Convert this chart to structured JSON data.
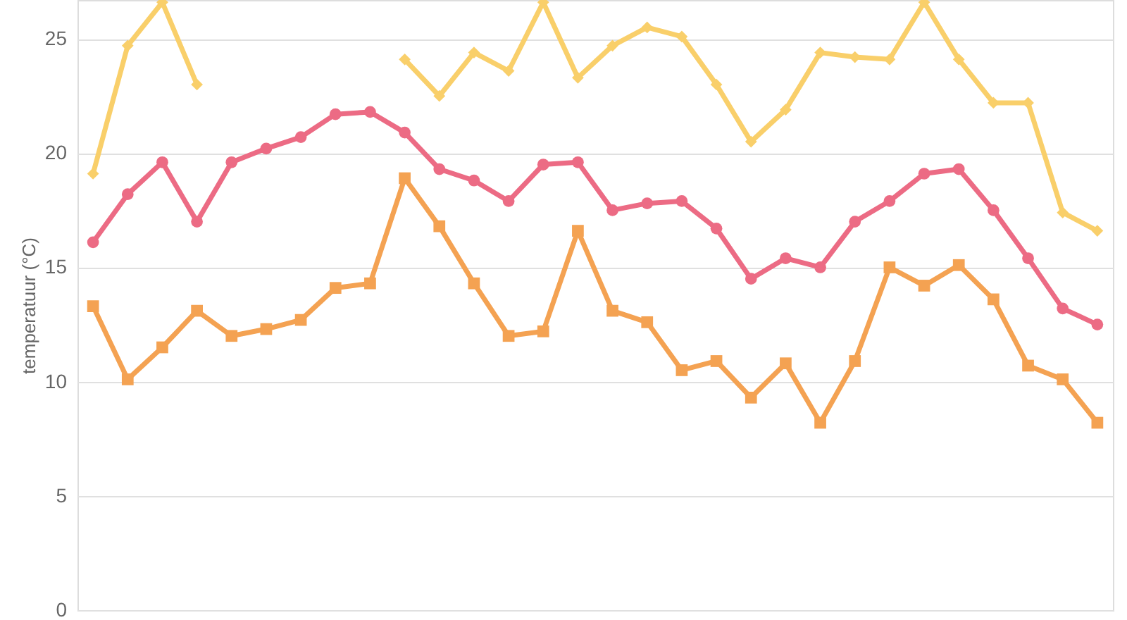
{
  "chart_data": {
    "type": "line",
    "ylabel": "temperatuur (°C)",
    "categories": [
      null,
      null,
      null,
      null,
      null,
      null,
      null,
      null,
      null,
      null,
      null,
      null,
      null,
      null,
      null,
      null,
      null,
      null,
      null,
      null,
      null,
      null,
      null,
      null,
      null,
      null,
      null,
      null,
      null,
      null
    ],
    "ylim": [
      0,
      26.7
    ],
    "yticks": [
      0,
      5,
      10,
      15,
      20,
      25
    ],
    "grid": "y",
    "tick_labels": "y",
    "series": [
      {
        "color": "#f9cf6a",
        "marker": "diamond",
        "values": [
          19.1,
          24.7,
          26.6,
          23.0,
          null,
          null,
          null,
          null,
          null,
          24.1,
          22.5,
          24.4,
          23.6,
          26.6,
          23.3,
          24.7,
          25.5,
          25.1,
          23.0,
          20.5,
          21.9,
          24.4,
          24.2,
          24.1,
          26.6,
          24.1,
          22.2,
          22.2,
          17.4,
          16.6
        ]
      },
      {
        "color": "#ec6b84",
        "marker": "circle",
        "values": [
          16.1,
          18.2,
          19.6,
          17.0,
          19.6,
          20.2,
          20.7,
          21.7,
          21.8,
          20.9,
          19.3,
          18.8,
          17.9,
          19.5,
          19.6,
          17.5,
          17.8,
          17.9,
          16.7,
          14.5,
          15.4,
          15.0,
          17.0,
          17.9,
          19.1,
          19.3,
          17.5,
          15.4,
          13.2,
          12.5
        ]
      },
      {
        "color": "#f4a252",
        "marker": "square",
        "values": [
          13.3,
          10.1,
          11.5,
          13.1,
          12.0,
          12.3,
          12.7,
          14.1,
          14.3,
          18.9,
          16.8,
          14.3,
          12.0,
          12.2,
          16.6,
          13.1,
          12.6,
          10.5,
          10.9,
          9.3,
          10.8,
          8.2,
          10.9,
          15.0,
          14.2,
          15.1,
          13.6,
          10.7,
          10.1,
          8.2
        ]
      }
    ]
  }
}
